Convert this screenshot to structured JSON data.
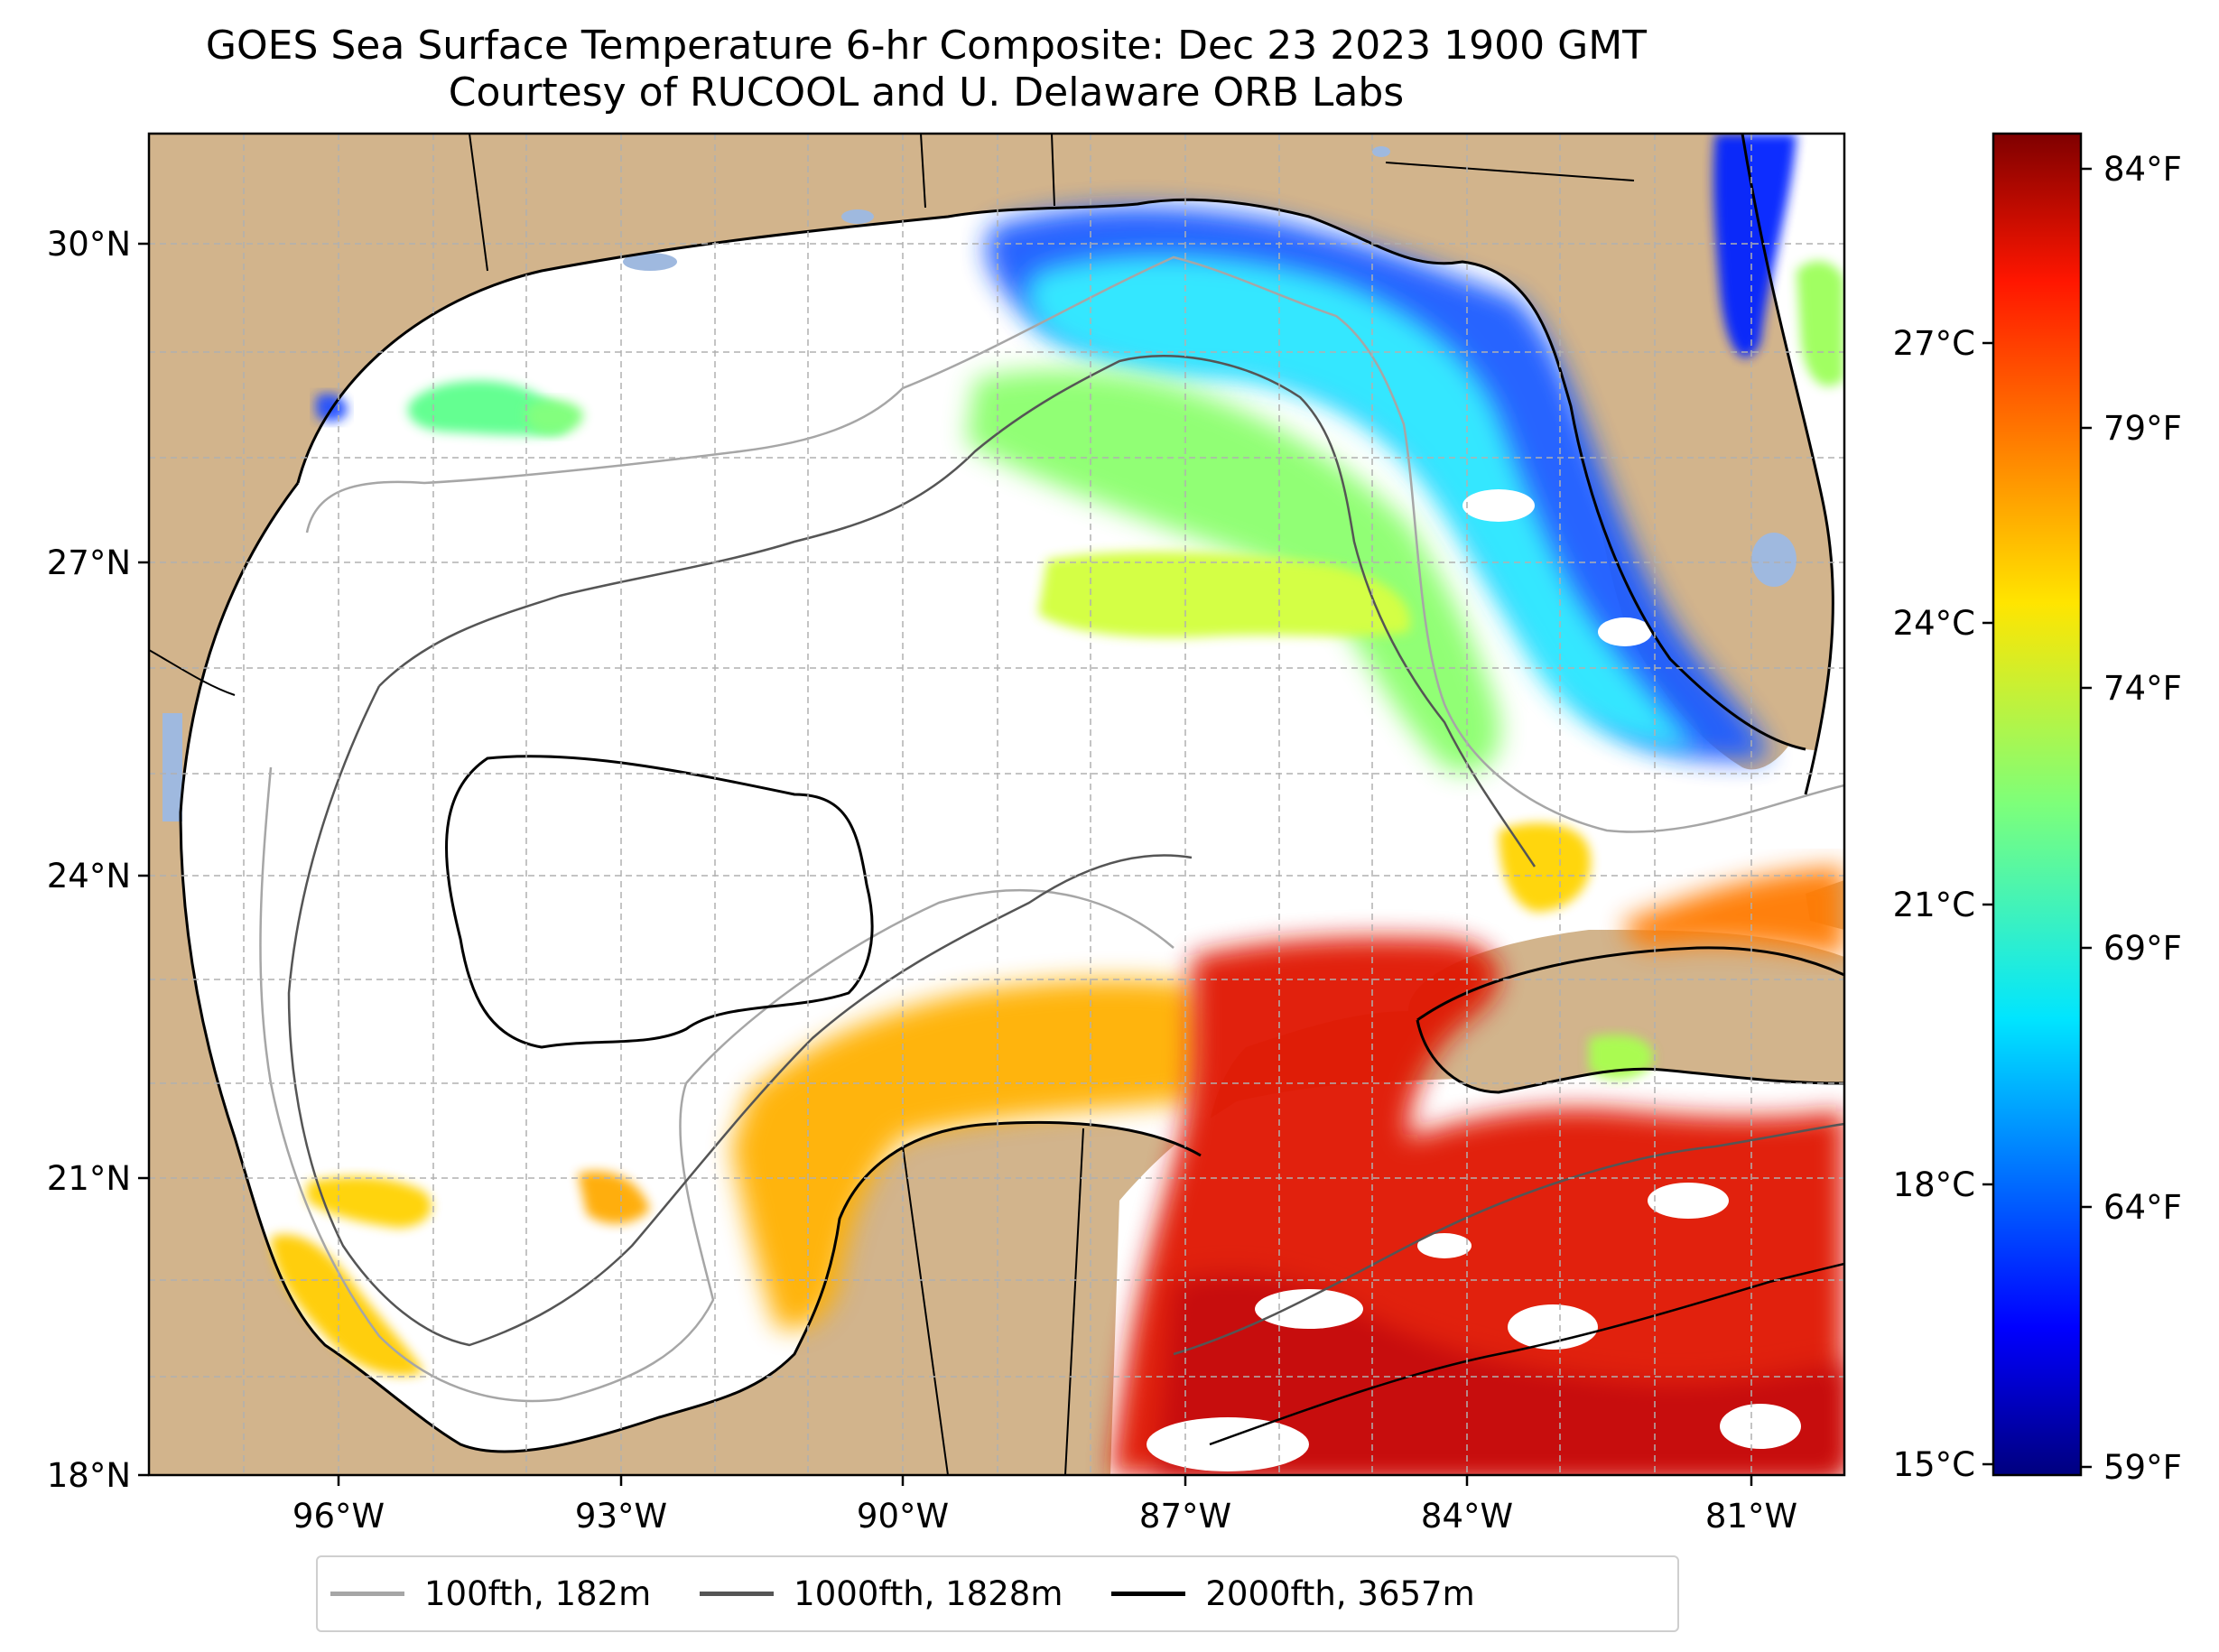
{
  "title": {
    "line1": "GOES Sea Surface Temperature 6-hr Composite: Dec 23 2023 1900 GMT",
    "line2": "Courtesy of RUCOOL and U. Delaware ORB Labs"
  },
  "map": {
    "lat_ticks": [
      "30°N",
      "27°N",
      "24°N",
      "21°N",
      "18°N"
    ],
    "lon_ticks": [
      "96°W",
      "93°W",
      "90°W",
      "87°W",
      "84°W",
      "81°W"
    ],
    "lat_range": [
      18,
      31
    ],
    "lon_range": [
      -98,
      -80
    ],
    "colors": {
      "land": "#d2b48c",
      "ocean_no_data": "#ffffff",
      "inland_water": "#9fb9df",
      "grid": "#b0b0b0"
    }
  },
  "colorbar": {
    "left_labels": [
      "27°C",
      "24°C",
      "21°C",
      "18°C",
      "15°C"
    ],
    "right_labels": [
      "84°F",
      "79°F",
      "74°F",
      "69°F",
      "64°F",
      "59°F"
    ],
    "colormap": "jet",
    "range_f": [
      58.6,
      85.0
    ]
  },
  "legend": {
    "items": [
      {
        "label": "100fth, 182m",
        "color": "#a6a6a6"
      },
      {
        "label": "1000fth, 1828m",
        "color": "#555555"
      },
      {
        "label": "2000fth, 3657m",
        "color": "#000000"
      }
    ]
  }
}
